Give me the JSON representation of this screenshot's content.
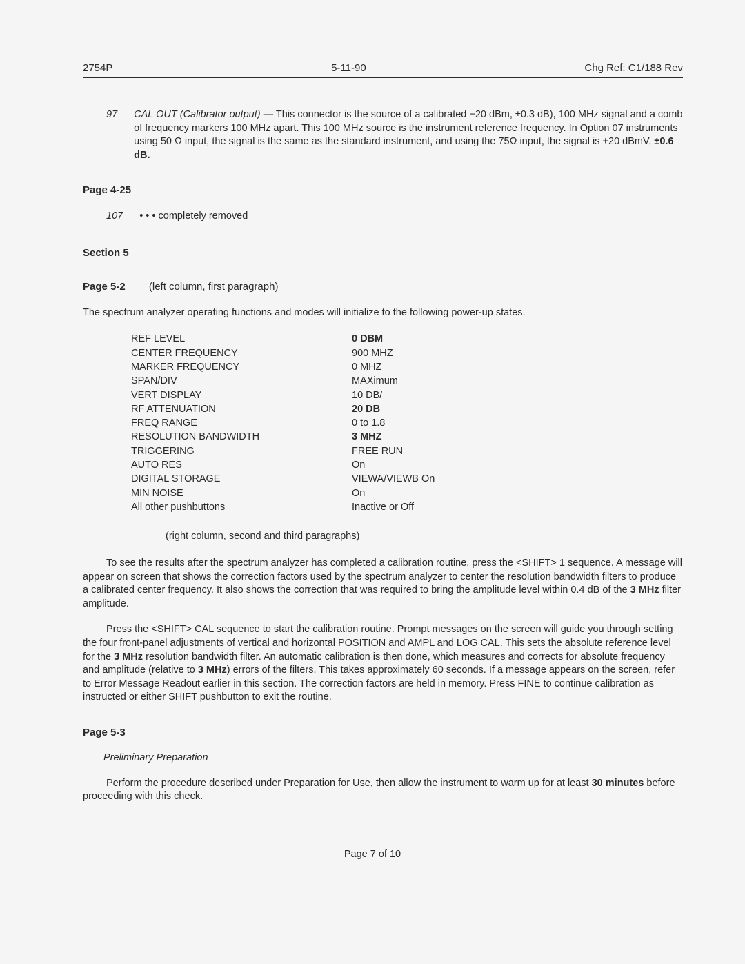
{
  "header": {
    "left": "2754P",
    "center": "5-11-90",
    "right": "Chg Ref: C1/188 Rev"
  },
  "item97": {
    "num": "97",
    "title_italic": "CAL OUT (Calibrator output)",
    "text": " — This connector is the source of a calibrated −20 dBm, ±0.3 dB), 100 MHz signal and a comb of frequency markers 100 MHz apart. This 100 MHz source is the instrument reference frequency. In Option 07 instruments using 50 Ω input, the signal is the same as the standard instrument, and using the 75Ω input, the signal is +20 dBmV, ",
    "bold_tail": "±0.6 dB."
  },
  "page425": {
    "head": "Page 4-25",
    "num": "107",
    "text": "• • • completely removed"
  },
  "section5": "Section 5",
  "page52": {
    "head_pg": "Page 5-2",
    "head_note": "(left column, first paragraph)",
    "intro": "The spectrum analyzer operating functions and modes will initialize to the following power-up states.",
    "rows": [
      {
        "l": "REF LEVEL",
        "r": "0 DBM",
        "rb": true
      },
      {
        "l": "CENTER FREQUENCY",
        "r": "900 MHZ"
      },
      {
        "l": "MARKER FREQUENCY",
        "r": "0 MHZ"
      },
      {
        "l": "SPAN/DIV",
        "r": "MAXimum"
      },
      {
        "l": "VERT DISPLAY",
        "r": "10 DB/"
      },
      {
        "l": "RF ATTENUATION",
        "r": "20 DB",
        "rb": true
      },
      {
        "l": "FREQ RANGE",
        "r": "0 to 1.8"
      },
      {
        "l": "RESOLUTION BANDWIDTH",
        "r": "3 MHZ",
        "rb": true
      },
      {
        "l": "TRIGGERING",
        "r": "FREE RUN"
      },
      {
        "l": "AUTO RES",
        "r": "On"
      },
      {
        "l": "DIGITAL STORAGE",
        "r": "VIEWA/VIEWB On"
      },
      {
        "l": "MIN NOISE",
        "r": "On"
      },
      {
        "l": "All other pushbuttons",
        "r": "Inactive or Off"
      }
    ],
    "right_note": "(right column, second and third paragraphs)",
    "para1_a": "To see the results after the spectrum analyzer has completed a calibration routine, press the <SHIFT> 1 sequence. A message will appear on screen that shows the correction factors used by the spectrum analyzer to center the resolution bandwidth filters to produce a calibrated center frequency. It also shows the correction that was required to bring the amplitude level within 0.4 dB of the ",
    "para1_b": "3 MHz",
    "para1_c": " filter amplitude.",
    "para2_a": "Press the <SHIFT> CAL sequence to start the calibration routine. Prompt messages on the screen will guide you through setting the four front-panel adjustments of vertical and horizontal POSITION and AMPL and LOG CAL. This sets the absolute reference level for the ",
    "para2_b": "3 MHz",
    "para2_c": " resolution bandwidth filter. An automatic calibration is then done, which measures and corrects for absolute frequency and amplitude (relative to ",
    "para2_d": "3 MHz",
    "para2_e": ") errors of the filters. This takes approximately 60 seconds. If a message appears on the screen, refer to Error Message Readout earlier in this section. The correction factors are held in memory. Press FINE to continue calibration as instructed or either SHIFT pushbutton to exit the routine."
  },
  "page53": {
    "head": "Page 5-3",
    "sub": "Preliminary Preparation",
    "para_a": "Perform the procedure described under Preparation for Use, then allow the instrument to warm up for at least ",
    "para_b": "30 minutes",
    "para_c": " before proceeding with this check."
  },
  "footer": "Page 7 of 10"
}
